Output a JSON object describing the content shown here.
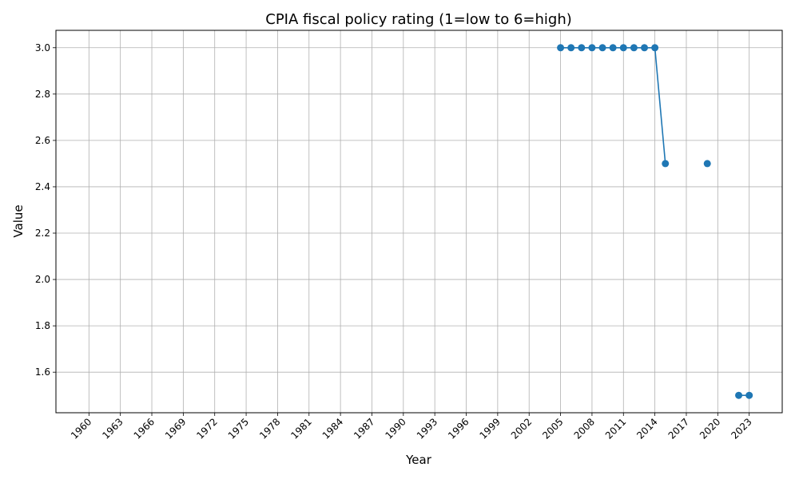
{
  "chart_data": {
    "type": "line",
    "title": "CPIA fiscal policy rating (1=low to 6=high)",
    "xlabel": "Year",
    "ylabel": "Value",
    "xlim": [
      1960,
      2023
    ],
    "ylim": [
      1.5,
      3.0
    ],
    "x_ticks": [
      "1960",
      "1963",
      "1966",
      "1969",
      "1972",
      "1975",
      "1978",
      "1981",
      "1984",
      "1987",
      "1990",
      "1993",
      "1996",
      "1999",
      "2002",
      "2005",
      "2008",
      "2011",
      "2014",
      "2017",
      "2020",
      "2023"
    ],
    "y_ticks": [
      "1.6",
      "1.8",
      "2.0",
      "2.2",
      "2.4",
      "2.6",
      "2.8",
      "3.0"
    ],
    "grid": true,
    "series": [
      {
        "color": "#1f77b4",
        "points": [
          {
            "x": 2005,
            "y": 3.0
          },
          {
            "x": 2006,
            "y": 3.0
          },
          {
            "x": 2007,
            "y": 3.0
          },
          {
            "x": 2008,
            "y": 3.0
          },
          {
            "x": 2009,
            "y": 3.0
          },
          {
            "x": 2010,
            "y": 3.0
          },
          {
            "x": 2011,
            "y": 3.0
          },
          {
            "x": 2012,
            "y": 3.0
          },
          {
            "x": 2013,
            "y": 3.0
          },
          {
            "x": 2014,
            "y": 3.0
          },
          {
            "x": 2015,
            "y": 2.5
          },
          {
            "x": 2016,
            "y": null
          },
          {
            "x": 2017,
            "y": null
          },
          {
            "x": 2018,
            "y": null
          },
          {
            "x": 2019,
            "y": 2.5
          },
          {
            "x": 2020,
            "y": null
          },
          {
            "x": 2021,
            "y": null
          },
          {
            "x": 2022,
            "y": 1.5
          },
          {
            "x": 2023,
            "y": 1.5
          }
        ]
      }
    ]
  }
}
